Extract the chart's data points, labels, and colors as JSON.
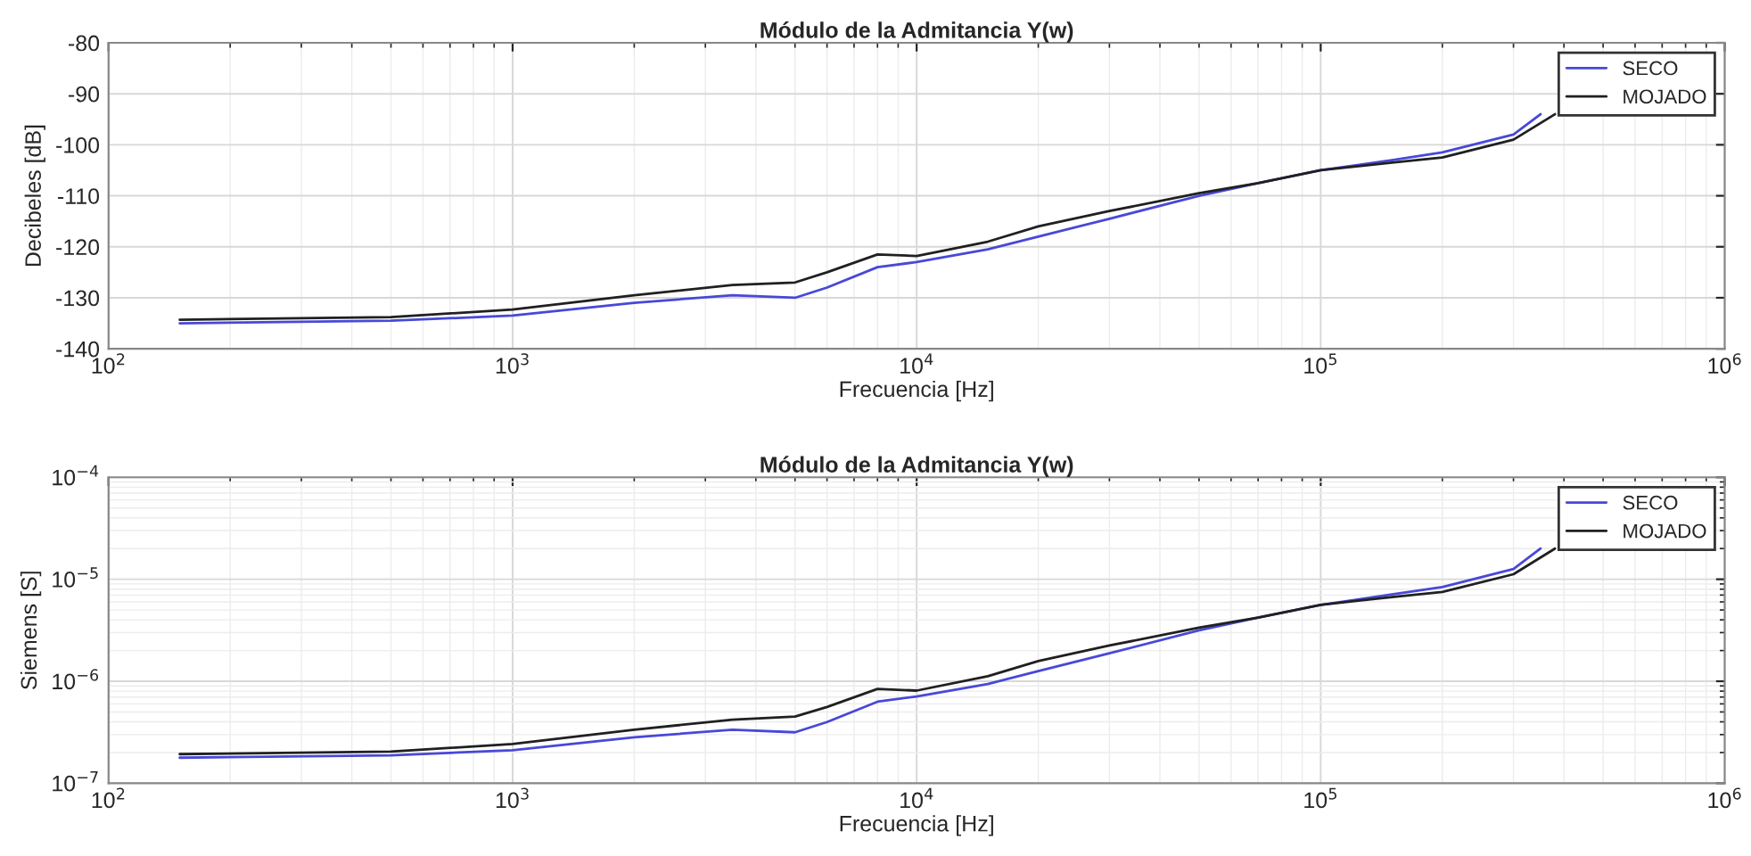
{
  "chart_data": [
    {
      "type": "line",
      "title": "Módulo de la Admitancia Y(w)",
      "xlabel": "Frecuencia [Hz]",
      "ylabel": "Decibeles [dB]",
      "log": "x",
      "grid": true,
      "legend": "top right",
      "xlim": [
        100,
        1000000
      ],
      "xticks": [
        {
          "value": 100,
          "label": "10$^{2}$"
        },
        {
          "value": 1000,
          "label": "10$^{3}$"
        },
        {
          "value": 10000,
          "label": "10$^{4}$"
        },
        {
          "value": 100000,
          "label": "10$^{5}$"
        },
        {
          "value": 1000000,
          "label": "10$^{6}$"
        }
      ],
      "ylim": [
        -140,
        -80
      ],
      "yticks": [
        -140,
        -130,
        -120,
        -110,
        -100,
        -90,
        -80
      ],
      "x": [
        150,
        500,
        1000,
        2000,
        3500,
        5000,
        6000,
        8000,
        10000,
        15000,
        20000,
        30000,
        50000,
        70000,
        100000,
        150000,
        200000,
        300000,
        350000
      ],
      "series": [
        {
          "name": "SECO",
          "color": "#4848d8",
          "values": [
            -135,
            -134.5,
            -133.5,
            -131,
            -129.5,
            -130,
            -128,
            -124,
            -123,
            -120.5,
            -118,
            -114.5,
            -110,
            -107.5,
            -105,
            -103,
            -101.5,
            -98,
            -94
          ]
        },
        {
          "name": "MOJADO",
          "color": "#202020",
          "x": [
            150,
            500,
            1000,
            2000,
            3500,
            5000,
            6000,
            8000,
            10000,
            15000,
            20000,
            30000,
            50000,
            70000,
            100000,
            150000,
            200000,
            300000,
            380000
          ],
          "values": [
            -134.3,
            -133.8,
            -132.3,
            -129.5,
            -127.5,
            -127,
            -125,
            -121.5,
            -121.8,
            -119,
            -116,
            -113,
            -109.5,
            -107.5,
            -105,
            -103.5,
            -102.5,
            -99,
            -94
          ]
        }
      ]
    },
    {
      "type": "line",
      "title": "Módulo de la Admitancia Y(w)",
      "xlabel": "Frecuencia [Hz]",
      "ylabel": "Siemens [S]",
      "log": "xy",
      "grid": true,
      "legend": "top right",
      "xlim": [
        100,
        1000000
      ],
      "xticks": [
        {
          "value": 100,
          "label": "10$^{2}$"
        },
        {
          "value": 1000,
          "label": "10$^{3}$"
        },
        {
          "value": 10000,
          "label": "10$^{4}$"
        },
        {
          "value": 100000,
          "label": "10$^{5}$"
        },
        {
          "value": 1000000,
          "label": "10$^{6}$"
        }
      ],
      "ylim": [
        1e-07,
        0.0001
      ],
      "yticks": [
        {
          "value": 1e-07,
          "label": "10$^{−7}$"
        },
        {
          "value": 1e-06,
          "label": "10$^{−6}$"
        },
        {
          "value": 1e-05,
          "label": "10$^{−5}$"
        },
        {
          "value": 0.0001,
          "label": "10$^{−4}$"
        }
      ],
      "x": [
        150,
        500,
        1000,
        2000,
        3500,
        5000,
        6000,
        8000,
        10000,
        15000,
        20000,
        30000,
        50000,
        70000,
        100000,
        150000,
        200000,
        300000,
        350000
      ],
      "series": [
        {
          "name": "SECO",
          "color": "#4848d8",
          "values": [
            1.78e-07,
            1.88e-07,
            2.11e-07,
            2.82e-07,
            3.35e-07,
            3.16e-07,
            3.98e-07,
            6.3e-07,
            7.1e-07,
            9.4e-07,
            1.26e-06,
            1.88e-06,
            3.16e-06,
            4.2e-06,
            5.6e-06,
            7.1e-06,
            8.4e-06,
            1.26e-05,
            2e-05
          ]
        },
        {
          "name": "MOJADO",
          "color": "#202020",
          "x": [
            150,
            500,
            1000,
            2000,
            3500,
            5000,
            6000,
            8000,
            10000,
            15000,
            20000,
            30000,
            50000,
            70000,
            100000,
            150000,
            200000,
            300000,
            380000
          ],
          "values": [
            1.93e-07,
            2.04e-07,
            2.43e-07,
            3.35e-07,
            4.2e-07,
            4.5e-07,
            5.6e-07,
            8.4e-07,
            8.1e-07,
            1.12e-06,
            1.58e-06,
            2.24e-06,
            3.35e-06,
            4.2e-06,
            5.6e-06,
            6.7e-06,
            7.5e-06,
            1.12e-05,
            2e-05
          ]
        }
      ]
    }
  ]
}
